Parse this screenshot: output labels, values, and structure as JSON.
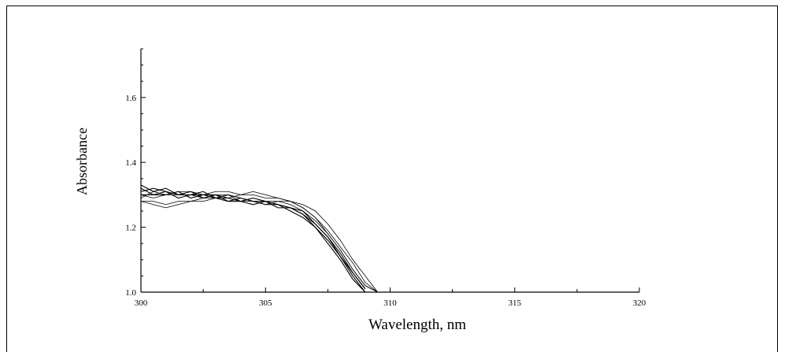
{
  "chart_data": {
    "type": "line",
    "title": "",
    "xlabel": "Wavelength, nm",
    "ylabel": "Absorbance",
    "xlim": [
      300,
      320
    ],
    "ylim": [
      1.0,
      1.75
    ],
    "x_ticks": [
      "300",
      "305",
      "310",
      "315",
      "320"
    ],
    "y_ticks": [
      "1.0",
      "1.2",
      "1.4",
      "1.6"
    ],
    "grid": false,
    "legend": "none",
    "line_color": "#000000",
    "x": [
      300,
      300.5,
      301,
      301.5,
      302,
      302.5,
      303,
      303.5,
      304,
      304.5,
      305,
      305.5,
      306,
      306.5,
      307,
      307.5,
      308,
      308.5,
      309,
      309.5,
      310
    ],
    "series": [
      {
        "values": [
          1.33,
          1.31,
          1.32,
          1.3,
          1.3,
          1.31,
          1.29,
          1.3,
          1.29,
          1.28,
          1.28,
          1.27,
          1.26,
          1.24,
          1.2,
          1.16,
          1.11,
          1.05,
          1.0,
          null,
          null
        ]
      },
      {
        "values": [
          1.31,
          1.32,
          1.31,
          1.3,
          1.31,
          1.29,
          1.3,
          1.29,
          1.28,
          1.29,
          1.28,
          1.27,
          1.26,
          1.25,
          1.21,
          1.17,
          1.12,
          1.06,
          1.01,
          null,
          null
        ]
      },
      {
        "values": [
          1.3,
          1.3,
          1.31,
          1.29,
          1.3,
          1.3,
          1.29,
          1.28,
          1.29,
          1.28,
          1.27,
          1.27,
          1.25,
          1.23,
          1.2,
          1.15,
          1.1,
          1.04,
          1.0,
          null,
          null
        ]
      },
      {
        "values": [
          1.32,
          1.3,
          1.3,
          1.31,
          1.29,
          1.3,
          1.3,
          1.28,
          1.28,
          1.27,
          1.28,
          1.26,
          1.26,
          1.24,
          1.21,
          1.17,
          1.11,
          1.06,
          1.01,
          null,
          null
        ]
      },
      {
        "values": [
          1.29,
          1.31,
          1.3,
          1.3,
          1.3,
          1.29,
          1.3,
          1.3,
          1.28,
          1.28,
          1.27,
          1.28,
          1.27,
          1.25,
          1.22,
          1.18,
          1.13,
          1.07,
          1.02,
          1.0,
          null
        ]
      },
      {
        "values": [
          1.3,
          1.29,
          1.3,
          1.31,
          1.31,
          1.3,
          1.31,
          1.31,
          1.3,
          1.31,
          1.3,
          1.29,
          1.28,
          1.26,
          1.23,
          1.19,
          1.14,
          1.09,
          1.03,
          1.0,
          null
        ]
      },
      {
        "values": [
          1.28,
          1.28,
          1.27,
          1.28,
          1.28,
          1.29,
          1.29,
          1.29,
          1.28,
          1.29,
          1.28,
          1.28,
          1.28,
          1.27,
          1.25,
          1.21,
          1.16,
          1.1,
          1.05,
          1.0,
          null
        ]
      },
      {
        "values": [
          1.28,
          1.27,
          1.26,
          1.27,
          1.28,
          1.28,
          1.29,
          1.29,
          1.3,
          1.3,
          1.29,
          1.29,
          1.28,
          1.26,
          1.23,
          1.18,
          1.13,
          1.07,
          1.02,
          1.0,
          null
        ]
      }
    ]
  }
}
